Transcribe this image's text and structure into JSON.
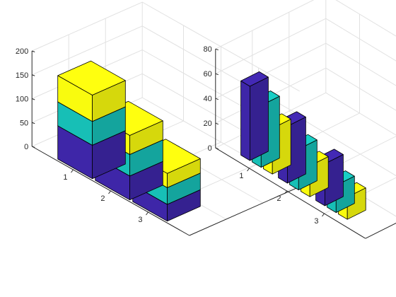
{
  "chart_data": [
    {
      "type": "bar3-stacked",
      "categories": [
        "1",
        "2",
        "3"
      ],
      "series": [
        {
          "values": [
            70,
            50,
            35
          ]
        },
        {
          "values": [
            50,
            45,
            35
          ]
        },
        {
          "values": [
            55,
            40,
            30
          ]
        }
      ],
      "zlim": [
        0,
        200
      ],
      "zticks": [
        "0",
        "50",
        "100",
        "150",
        "200"
      ],
      "grid": true,
      "colors": [
        "#3e26a8",
        "#17bfb6",
        "#f9fb0e"
      ]
    },
    {
      "type": "bar3-grouped",
      "categories": [
        "1",
        "2",
        "3"
      ],
      "series": [
        {
          "values": [
            60,
            46,
            34
          ]
        },
        {
          "values": [
            50,
            33,
            22
          ]
        },
        {
          "values": [
            37,
            25,
            18
          ]
        }
      ],
      "zlim": [
        0,
        80
      ],
      "zticks": [
        "0",
        "20",
        "40",
        "60",
        "80"
      ],
      "grid": true,
      "colors": [
        "#3e26a8",
        "#17bfb6",
        "#f9fb0e"
      ]
    }
  ]
}
